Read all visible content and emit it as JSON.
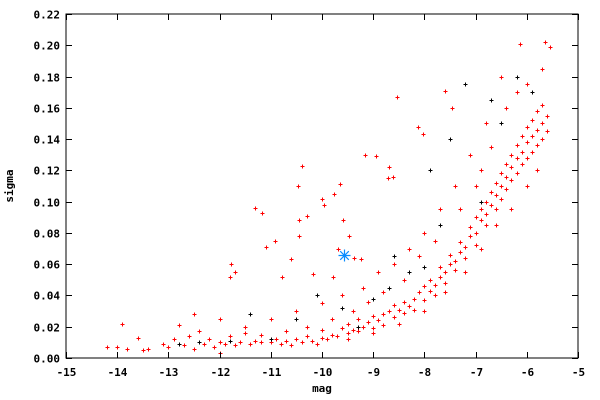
{
  "chart_data": {
    "type": "scatter",
    "title": "",
    "xlabel": "mag",
    "ylabel": "sigma",
    "xlim": [
      -15,
      -5
    ],
    "ylim": [
      0,
      0.22
    ],
    "xticks": [
      "-15",
      "-14",
      "-13",
      "-12",
      "-11",
      "-10",
      "-9",
      "-8",
      "-7",
      "-6",
      "-5"
    ],
    "yticks": [
      "0.00",
      "0.02",
      "0.04",
      "0.06",
      "0.08",
      "0.10",
      "0.12",
      "0.14",
      "0.16",
      "0.18",
      "0.20",
      "0.22"
    ],
    "grid": false,
    "legend": "none",
    "series": [
      {
        "color": "#ff0000",
        "marker": "plus",
        "points": [
          [
            -14.2,
            0.007
          ],
          [
            -14.0,
            0.007
          ],
          [
            -13.9,
            0.022
          ],
          [
            -13.8,
            0.006
          ],
          [
            -13.6,
            0.013
          ],
          [
            -13.5,
            0.005
          ],
          [
            -13.4,
            0.006
          ],
          [
            -13.1,
            0.009
          ],
          [
            -13.0,
            0.007
          ],
          [
            -12.9,
            0.012
          ],
          [
            -12.8,
            0.021
          ],
          [
            -12.7,
            0.008
          ],
          [
            -12.6,
            0.014
          ],
          [
            -12.5,
            0.006
          ],
          [
            -12.4,
            0.017
          ],
          [
            -12.3,
            0.009
          ],
          [
            -12.2,
            0.012
          ],
          [
            -12.1,
            0.007
          ],
          [
            -12.0,
            0.003
          ],
          [
            -12.0,
            0.01
          ],
          [
            -11.9,
            0.009
          ],
          [
            -11.8,
            0.014
          ],
          [
            -11.7,
            0.008
          ],
          [
            -11.7,
            0.055
          ],
          [
            -11.6,
            0.01
          ],
          [
            -11.5,
            0.016
          ],
          [
            -11.4,
            0.009
          ],
          [
            -11.3,
            0.011
          ],
          [
            -11.2,
            0.01
          ],
          [
            -11.1,
            0.071
          ],
          [
            -11.0,
            0.01
          ],
          [
            -10.9,
            0.012
          ],
          [
            -10.8,
            0.009
          ],
          [
            -10.7,
            0.011
          ],
          [
            -10.6,
            0.008
          ],
          [
            -10.5,
            0.012
          ],
          [
            -10.4,
            0.01
          ],
          [
            -10.3,
            0.014
          ],
          [
            -10.2,
            0.011
          ],
          [
            -10.1,
            0.009
          ],
          [
            -10.0,
            0.013
          ],
          [
            -10.0,
            0.018
          ],
          [
            -9.9,
            0.012
          ],
          [
            -9.8,
            0.015
          ],
          [
            -9.7,
            0.014
          ],
          [
            -9.6,
            0.019
          ],
          [
            -9.5,
            0.016
          ],
          [
            -9.5,
            0.022
          ],
          [
            -9.4,
            0.018
          ],
          [
            -9.3,
            0.017
          ],
          [
            -9.3,
            0.025
          ],
          [
            -9.2,
            0.02
          ],
          [
            -9.1,
            0.023
          ],
          [
            -9.0,
            0.019
          ],
          [
            -9.0,
            0.027
          ],
          [
            -8.9,
            0.024
          ],
          [
            -8.8,
            0.028
          ],
          [
            -8.8,
            0.021
          ],
          [
            -8.7,
            0.03
          ],
          [
            -8.6,
            0.026
          ],
          [
            -8.6,
            0.034
          ],
          [
            -8.5,
            0.031
          ],
          [
            -8.4,
            0.029
          ],
          [
            -8.4,
            0.036
          ],
          [
            -8.3,
            0.033
          ],
          [
            -8.2,
            0.038
          ],
          [
            -8.2,
            0.031
          ],
          [
            -8.1,
            0.042
          ],
          [
            -8.0,
            0.037
          ],
          [
            -8.0,
            0.046
          ],
          [
            -7.9,
            0.043
          ],
          [
            -7.9,
            0.05
          ],
          [
            -7.8,
            0.047
          ],
          [
            -7.8,
            0.04
          ],
          [
            -7.7,
            0.052
          ],
          [
            -7.7,
            0.058
          ],
          [
            -7.6,
            0.055
          ],
          [
            -7.6,
            0.048
          ],
          [
            -7.5,
            0.06
          ],
          [
            -7.5,
            0.066
          ],
          [
            -7.4,
            0.062
          ],
          [
            -7.4,
            0.056
          ],
          [
            -7.3,
            0.068
          ],
          [
            -7.3,
            0.074
          ],
          [
            -7.2,
            0.071
          ],
          [
            -7.2,
            0.064
          ],
          [
            -7.1,
            0.078
          ],
          [
            -7.1,
            0.084
          ],
          [
            -7.0,
            0.08
          ],
          [
            -7.0,
            0.09
          ],
          [
            -7.0,
            0.072
          ],
          [
            -6.9,
            0.088
          ],
          [
            -6.9,
            0.095
          ],
          [
            -6.8,
            0.092
          ],
          [
            -6.8,
            0.1
          ],
          [
            -6.8,
            0.085
          ],
          [
            -6.7,
            0.098
          ],
          [
            -6.7,
            0.106
          ],
          [
            -6.6,
            0.104
          ],
          [
            -6.6,
            0.112
          ],
          [
            -6.6,
            0.095
          ],
          [
            -6.5,
            0.11
          ],
          [
            -6.5,
            0.118
          ],
          [
            -6.5,
            0.102
          ],
          [
            -6.4,
            0.116
          ],
          [
            -6.4,
            0.124
          ],
          [
            -6.4,
            0.108
          ],
          [
            -6.3,
            0.122
          ],
          [
            -6.3,
            0.13
          ],
          [
            -6.3,
            0.114
          ],
          [
            -6.2,
            0.128
          ],
          [
            -6.2,
            0.136
          ],
          [
            -6.2,
            0.118
          ],
          [
            -6.1,
            0.132
          ],
          [
            -6.1,
            0.142
          ],
          [
            -6.1,
            0.124
          ],
          [
            -6.0,
            0.138
          ],
          [
            -6.0,
            0.148
          ],
          [
            -6.0,
            0.128
          ],
          [
            -5.9,
            0.142
          ],
          [
            -5.9,
            0.152
          ],
          [
            -5.9,
            0.132
          ],
          [
            -5.8,
            0.146
          ],
          [
            -5.8,
            0.158
          ],
          [
            -5.8,
            0.136
          ],
          [
            -5.7,
            0.15
          ],
          [
            -5.7,
            0.162
          ],
          [
            -5.7,
            0.14
          ],
          [
            -5.6,
            0.155
          ],
          [
            -5.6,
            0.145
          ],
          [
            -6.4,
            0.16
          ],
          [
            -6.2,
            0.17
          ],
          [
            -6.5,
            0.18
          ],
          [
            -6.0,
            0.175
          ],
          [
            -5.7,
            0.185
          ],
          [
            -6.8,
            0.15
          ],
          [
            -7.1,
            0.13
          ],
          [
            -7.4,
            0.11
          ],
          [
            -7.7,
            0.095
          ],
          [
            -8.0,
            0.08
          ],
          [
            -8.3,
            0.07
          ],
          [
            -8.6,
            0.06
          ],
          [
            -8.9,
            0.055
          ],
          [
            -9.2,
            0.045
          ],
          [
            -9.6,
            0.04
          ],
          [
            -10.0,
            0.035
          ],
          [
            -10.5,
            0.03
          ],
          [
            -11.0,
            0.025
          ],
          [
            -11.5,
            0.02
          ],
          [
            -12.0,
            0.025
          ],
          [
            -12.5,
            0.028
          ],
          [
            -7.0,
            0.11
          ],
          [
            -6.7,
            0.135
          ],
          [
            -6.9,
            0.12
          ],
          [
            -7.3,
            0.095
          ],
          [
            -7.8,
            0.075
          ],
          [
            -8.1,
            0.065
          ],
          [
            -8.4,
            0.05
          ],
          [
            -8.8,
            0.042
          ],
          [
            -9.1,
            0.036
          ],
          [
            -9.4,
            0.03
          ],
          [
            -9.8,
            0.025
          ],
          [
            -10.3,
            0.02
          ],
          [
            -10.7,
            0.017
          ],
          [
            -11.2,
            0.015
          ],
          [
            -6.3,
            0.095
          ],
          [
            -6.0,
            0.11
          ],
          [
            -5.8,
            0.12
          ],
          [
            -6.6,
            0.085
          ],
          [
            -6.9,
            0.07
          ],
          [
            -7.2,
            0.055
          ],
          [
            -7.6,
            0.042
          ],
          [
            -8.0,
            0.03
          ],
          [
            -8.5,
            0.022
          ],
          [
            -9.0,
            0.016
          ],
          [
            -9.5,
            0.012
          ],
          [
            -10.39,
            0.123
          ],
          [
            -10.47,
            0.11
          ],
          [
            -11.31,
            0.096
          ],
          [
            -11.17,
            0.093
          ],
          [
            -10.92,
            0.075
          ],
          [
            -10.45,
            0.088
          ],
          [
            -10.45,
            0.078
          ],
          [
            -10.29,
            0.091
          ],
          [
            -10.0,
            0.102
          ],
          [
            -9.96,
            0.098
          ],
          [
            -9.77,
            0.105
          ],
          [
            -9.65,
            0.111
          ],
          [
            -9.59,
            0.088
          ],
          [
            -9.47,
            0.078
          ],
          [
            -9.16,
            0.13
          ],
          [
            -8.95,
            0.129
          ],
          [
            -8.54,
            0.167
          ],
          [
            -7.6,
            0.171
          ],
          [
            -7.46,
            0.16
          ],
          [
            -8.12,
            0.148
          ],
          [
            -8.03,
            0.143
          ],
          [
            -8.7,
            0.122
          ],
          [
            -8.71,
            0.115
          ],
          [
            -8.61,
            0.116
          ],
          [
            -10.61,
            0.063
          ],
          [
            -11.78,
            0.06
          ],
          [
            -11.8,
            0.052
          ],
          [
            -10.18,
            0.054
          ],
          [
            -9.79,
            0.052
          ],
          [
            -10.78,
            0.052
          ],
          [
            -9.24,
            0.063
          ],
          [
            -9.38,
            0.064
          ],
          [
            -9.69,
            0.07
          ],
          [
            -6.13,
            0.201
          ],
          [
            -5.64,
            0.202
          ],
          [
            -5.55,
            0.199
          ]
        ]
      },
      {
        "color": "#000000",
        "marker": "plus",
        "points": [
          [
            -11.0,
            0.012
          ],
          [
            -10.5,
            0.025
          ],
          [
            -10.1,
            0.04
          ],
          [
            -9.6,
            0.032
          ],
          [
            -9.3,
            0.02
          ],
          [
            -9.0,
            0.038
          ],
          [
            -8.7,
            0.045
          ],
          [
            -8.3,
            0.055
          ],
          [
            -8.0,
            0.058
          ],
          [
            -7.7,
            0.085
          ],
          [
            -7.5,
            0.14
          ],
          [
            -7.2,
            0.175
          ],
          [
            -6.9,
            0.1
          ],
          [
            -6.5,
            0.15
          ],
          [
            -6.2,
            0.18
          ],
          [
            -5.9,
            0.17
          ],
          [
            -12.8,
            0.009
          ],
          [
            -12.4,
            0.01
          ],
          [
            -11.8,
            0.011
          ],
          [
            -11.4,
            0.028
          ],
          [
            -8.6,
            0.065
          ],
          [
            -7.9,
            0.12
          ],
          [
            -6.7,
            0.165
          ]
        ]
      },
      {
        "color": "#0a8cff",
        "marker": "star",
        "points": [
          [
            -9.57,
            0.066
          ]
        ]
      }
    ]
  }
}
